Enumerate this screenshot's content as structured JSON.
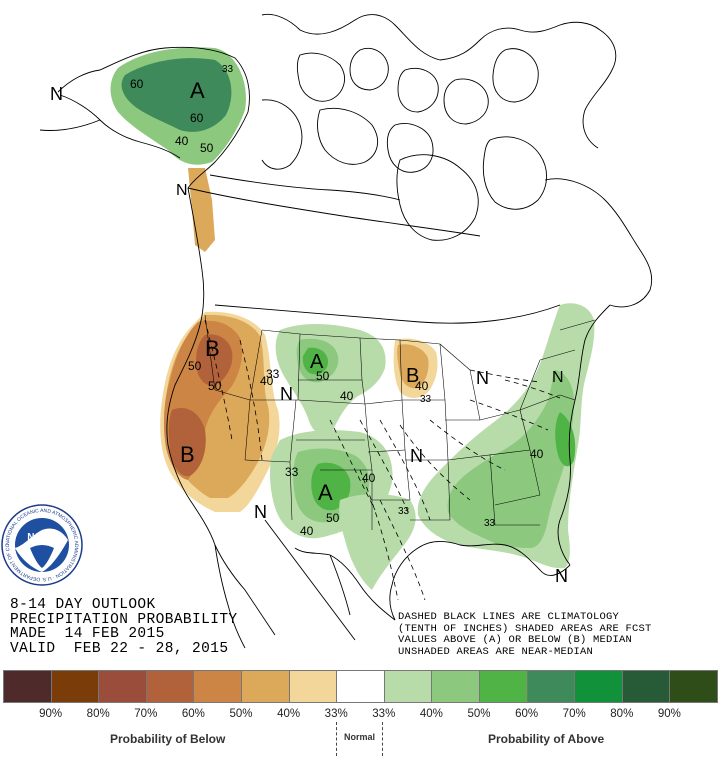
{
  "title": {
    "line1": "8-14 DAY OUTLOOK",
    "line2": "PRECIPITATION PROBABILITY",
    "line3": "MADE  14 FEB 2015",
    "line4": "VALID  FEB 22 - 28, 2015"
  },
  "note": {
    "line1": "DASHED BLACK LINES ARE CLIMATOLOGY",
    "line2": "(TENTH OF INCHES) SHADED AREAS ARE FCST",
    "line3": "VALUES ABOVE (A) OR BELOW (B) MEDIAN",
    "line4": "UNSHADED AREAS ARE NEAR-MEDIAN"
  },
  "logo": {
    "center_text": "NOAA",
    "ring_text": "NATIONAL OCEANIC AND ATMOSPHERIC ADMINISTRATION · U.S. DEPARTMENT OF COMMERCE"
  },
  "map_labels": {
    "alaska_a": "A",
    "alaska_60a": "60",
    "alaska_60b": "60",
    "alaska_50": "50",
    "alaska_40": "40",
    "alaska_33": "33",
    "nw_n": "N",
    "west_n": "N",
    "west_b1": "B",
    "west_b2": "B",
    "west_50a": "50",
    "west_50b": "50",
    "west_40": "40",
    "west_33": "33",
    "plains_n": "N",
    "north_a": "A",
    "north_50": "50",
    "north_40": "40",
    "south_a": "A",
    "south_50": "50",
    "south_40a": "40",
    "south_40b": "40",
    "south_33": "33",
    "sw_n": "N",
    "mw_b": "B",
    "mw_40": "40",
    "mw_33": "33",
    "ohio_n": "N",
    "gl_n": "N",
    "east_40": "40",
    "se_33": "33",
    "mid_n": "N",
    "se_n": "N",
    "south_33b": "33"
  },
  "legend": {
    "colors": [
      "#4e2a2a",
      "#7a3c09",
      "#9a4d3b",
      "#b1623a",
      "#cc8544",
      "#dca95a",
      "#f3d79a",
      "#ffffff",
      "#b7dcaa",
      "#8cc97e",
      "#4fb345",
      "#3f8a5a",
      "#11913a",
      "#275a36",
      "#2e4d19"
    ],
    "ticks": [
      "90%",
      "80%",
      "70%",
      "60%",
      "50%",
      "40%",
      "33%",
      "33%",
      "40%",
      "50%",
      "60%",
      "70%",
      "80%",
      "90%"
    ],
    "below_label": "Probability of Below",
    "normal_label": "Normal",
    "above_label": "Probability of Above"
  }
}
